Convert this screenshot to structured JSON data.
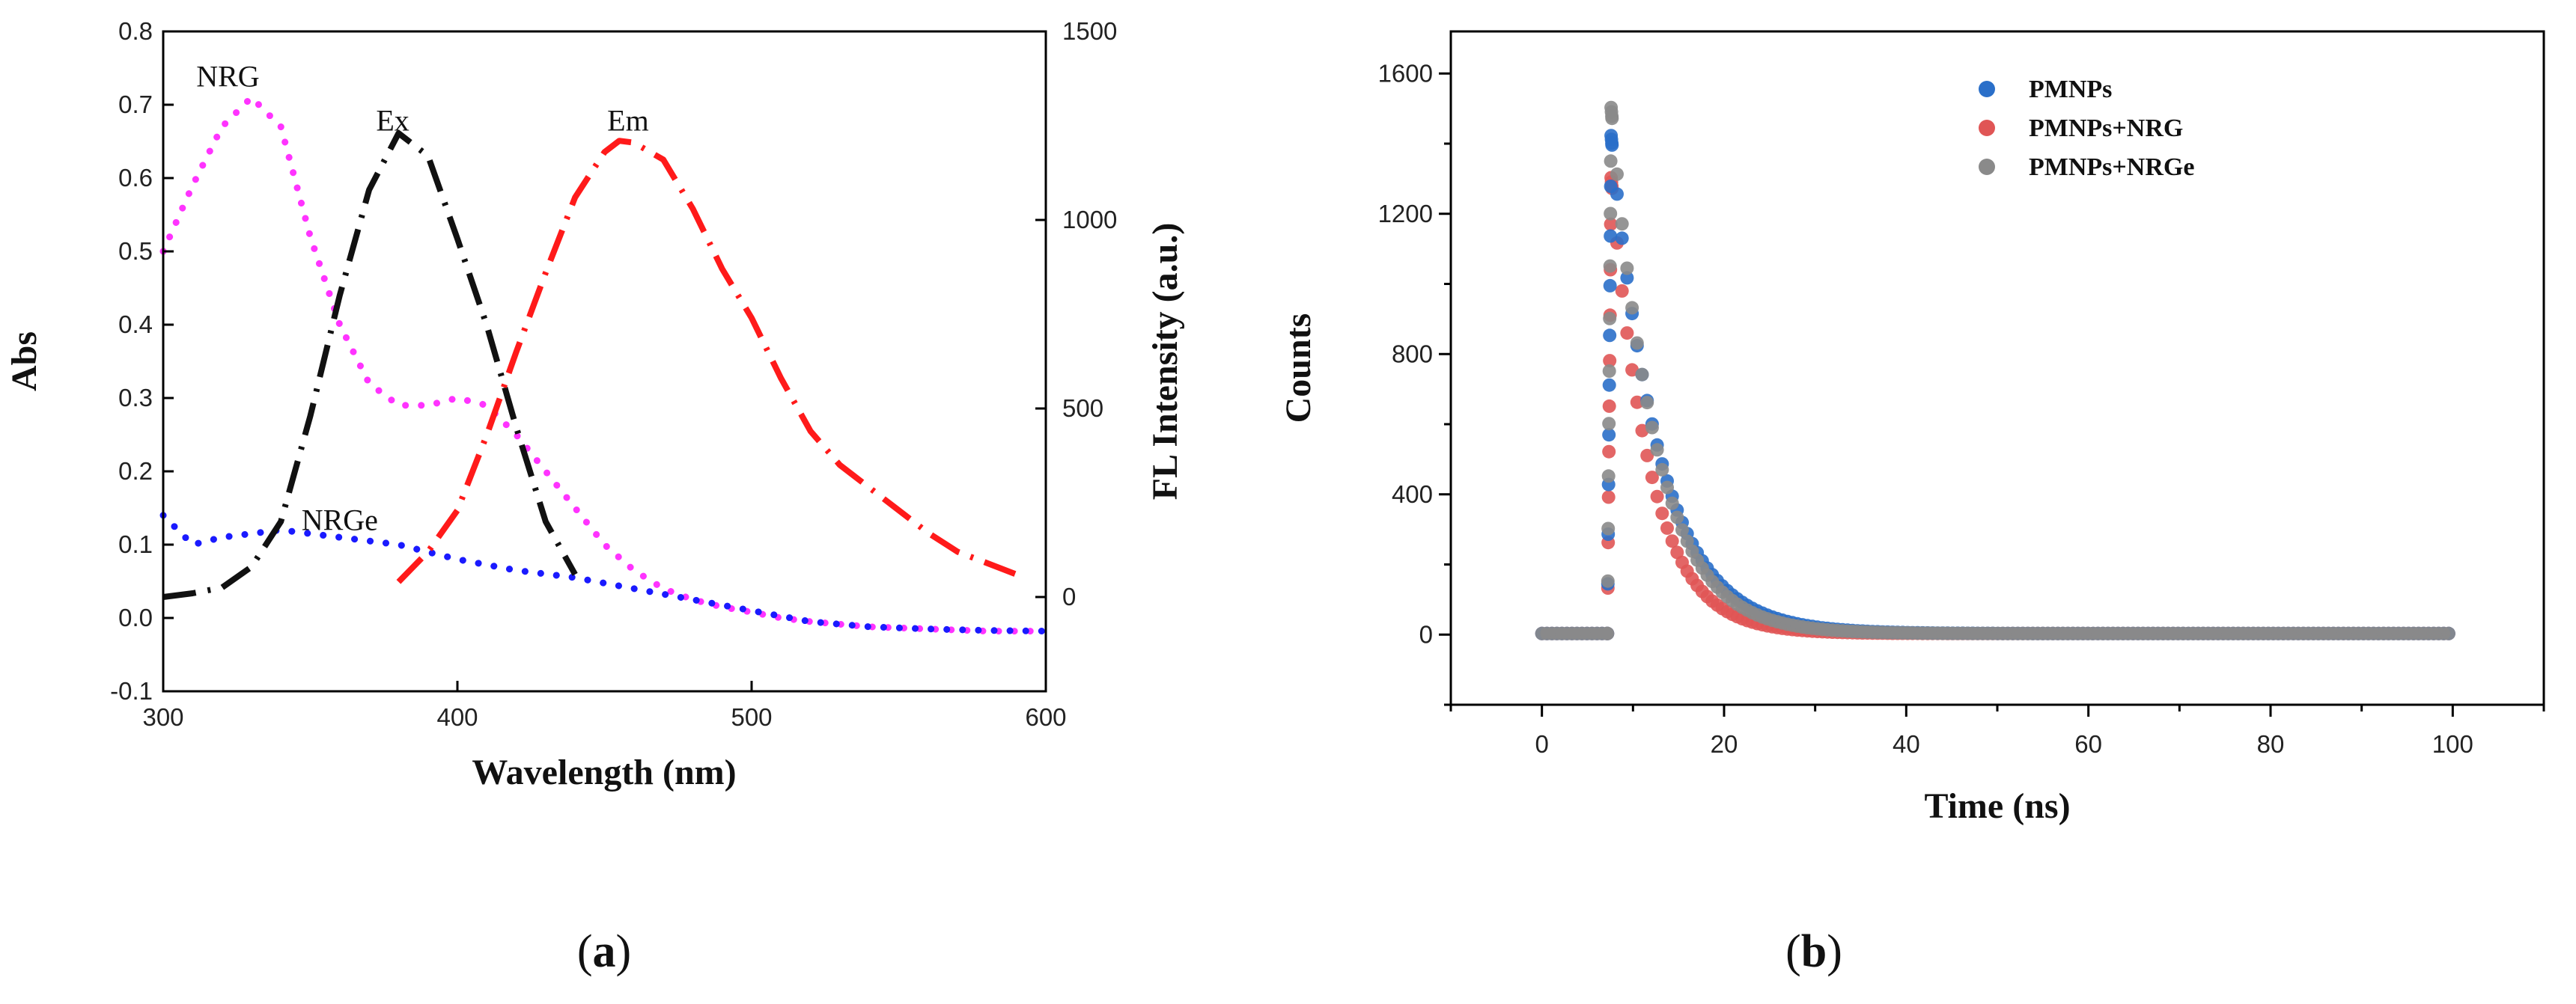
{
  "chart_data": [
    {
      "id": "a",
      "type": "line",
      "caption_letter": "a",
      "xlabel": "Wavelength (nm)",
      "ylabel": "Abs",
      "y2label": "FL Intensity (a.u.)",
      "xlim": [
        300,
        600
      ],
      "ylim": [
        -0.1,
        0.8
      ],
      "y2lim": [
        -250,
        1500
      ],
      "xticks": [
        300,
        400,
        500,
        600
      ],
      "xtick_labels": [
        "300",
        "400",
        "500",
        "600"
      ],
      "yticks": [
        -0.1,
        0.0,
        0.1,
        0.2,
        0.3,
        0.4,
        0.5,
        0.6,
        0.7,
        0.8
      ],
      "ytick_labels": [
        "-0.1",
        "0.0",
        "0.1",
        "0.2",
        "0.3",
        "0.4",
        "0.5",
        "0.6",
        "0.7",
        "0.8"
      ],
      "y2ticks": [
        0,
        500,
        1000,
        1500
      ],
      "y2tick_labels": [
        "0",
        "500",
        "1000",
        "1500"
      ],
      "series": [
        {
          "name": "NRG",
          "axis": "left",
          "color": "#ff33ff",
          "style": "dotted",
          "x": [
            300,
            310,
            320,
            330,
            340,
            350,
            360,
            370,
            380,
            390,
            400,
            410,
            420,
            430,
            440,
            450,
            460,
            470,
            480,
            490,
            500,
            510,
            520,
            540,
            560,
            580,
            600
          ],
          "y": [
            0.5,
            0.59,
            0.67,
            0.71,
            0.67,
            0.52,
            0.4,
            0.32,
            0.29,
            0.29,
            0.3,
            0.29,
            0.25,
            0.2,
            0.15,
            0.1,
            0.065,
            0.04,
            0.025,
            0.015,
            0.008,
            0.0,
            -0.005,
            -0.012,
            -0.015,
            -0.018,
            -0.018
          ]
        },
        {
          "name": "NRGe",
          "axis": "left",
          "color": "#1a1aff",
          "style": "dotted",
          "x": [
            300,
            310,
            320,
            340,
            360,
            380,
            400,
            420,
            440,
            460,
            480,
            500,
            520,
            540,
            560,
            580,
            600
          ],
          "y": [
            0.14,
            0.1,
            0.11,
            0.12,
            0.11,
            0.1,
            0.08,
            0.065,
            0.055,
            0.04,
            0.025,
            0.01,
            -0.005,
            -0.012,
            -0.015,
            -0.017,
            -0.018
          ]
        },
        {
          "name": "Ex",
          "axis": "right",
          "color": "#111111",
          "style": "dashdot",
          "x": [
            300,
            310,
            320,
            330,
            340,
            350,
            360,
            370,
            380,
            390,
            400,
            410,
            420,
            430,
            440
          ],
          "y": [
            0,
            10,
            25,
            80,
            200,
            480,
            800,
            1080,
            1230,
            1170,
            950,
            720,
            450,
            200,
            60
          ]
        },
        {
          "name": "Em",
          "axis": "right",
          "color": "#ff1a1a",
          "style": "dashdot",
          "x": [
            380,
            390,
            400,
            410,
            420,
            430,
            440,
            450,
            455,
            460,
            470,
            480,
            490,
            500,
            510,
            520,
            530,
            540,
            550,
            560,
            570,
            580,
            590
          ],
          "y": [
            40,
            120,
            230,
            430,
            650,
            860,
            1060,
            1180,
            1210,
            1205,
            1160,
            1030,
            870,
            740,
            580,
            440,
            350,
            290,
            230,
            170,
            120,
            90,
            60
          ]
        }
      ],
      "annotations": [
        {
          "text": "NRG",
          "x": 322,
          "y": 0.725,
          "axis": "left"
        },
        {
          "text": "Ex",
          "x": 378,
          "y": 0.665,
          "axis": "left"
        },
        {
          "text": "Em",
          "x": 458,
          "y": 0.665,
          "axis": "left"
        },
        {
          "text": "NRGe",
          "x": 360,
          "y": 0.12,
          "axis": "left"
        }
      ]
    },
    {
      "id": "b",
      "type": "scatter",
      "caption_letter": "b",
      "xlabel": "Time (ns)",
      "ylabel": "Counts",
      "xlim": [
        -10,
        110
      ],
      "ylim": [
        -200,
        1720
      ],
      "xticks": [
        0,
        20,
        40,
        60,
        80,
        100
      ],
      "xtick_labels": [
        "0",
        "20",
        "40",
        "60",
        "80",
        "100"
      ],
      "yticks": [
        0,
        400,
        800,
        1200,
        1600
      ],
      "ytick_labels": [
        "0",
        "400",
        "800",
        "1200",
        "1600"
      ],
      "legend_position": "top-center",
      "series": [
        {
          "name": "PMNPs",
          "color": "#2a6fc9",
          "peak": 1420,
          "tau": 5.2,
          "t0": 7.6
        },
        {
          "name": "PMNPs+NRG",
          "color": "#e05555",
          "peak": 1300,
          "tau": 4.2,
          "t0": 7.6
        },
        {
          "name": "PMNPs+NRGe",
          "color": "#8a8a8a",
          "peak": 1500,
          "tau": 4.8,
          "t0": 7.6
        }
      ]
    }
  ],
  "panel_labels": {
    "a_open": "(",
    "a_letter": "a",
    "a_close": ")",
    "b_open": "(",
    "b_letter": "b",
    "b_close": ")"
  }
}
